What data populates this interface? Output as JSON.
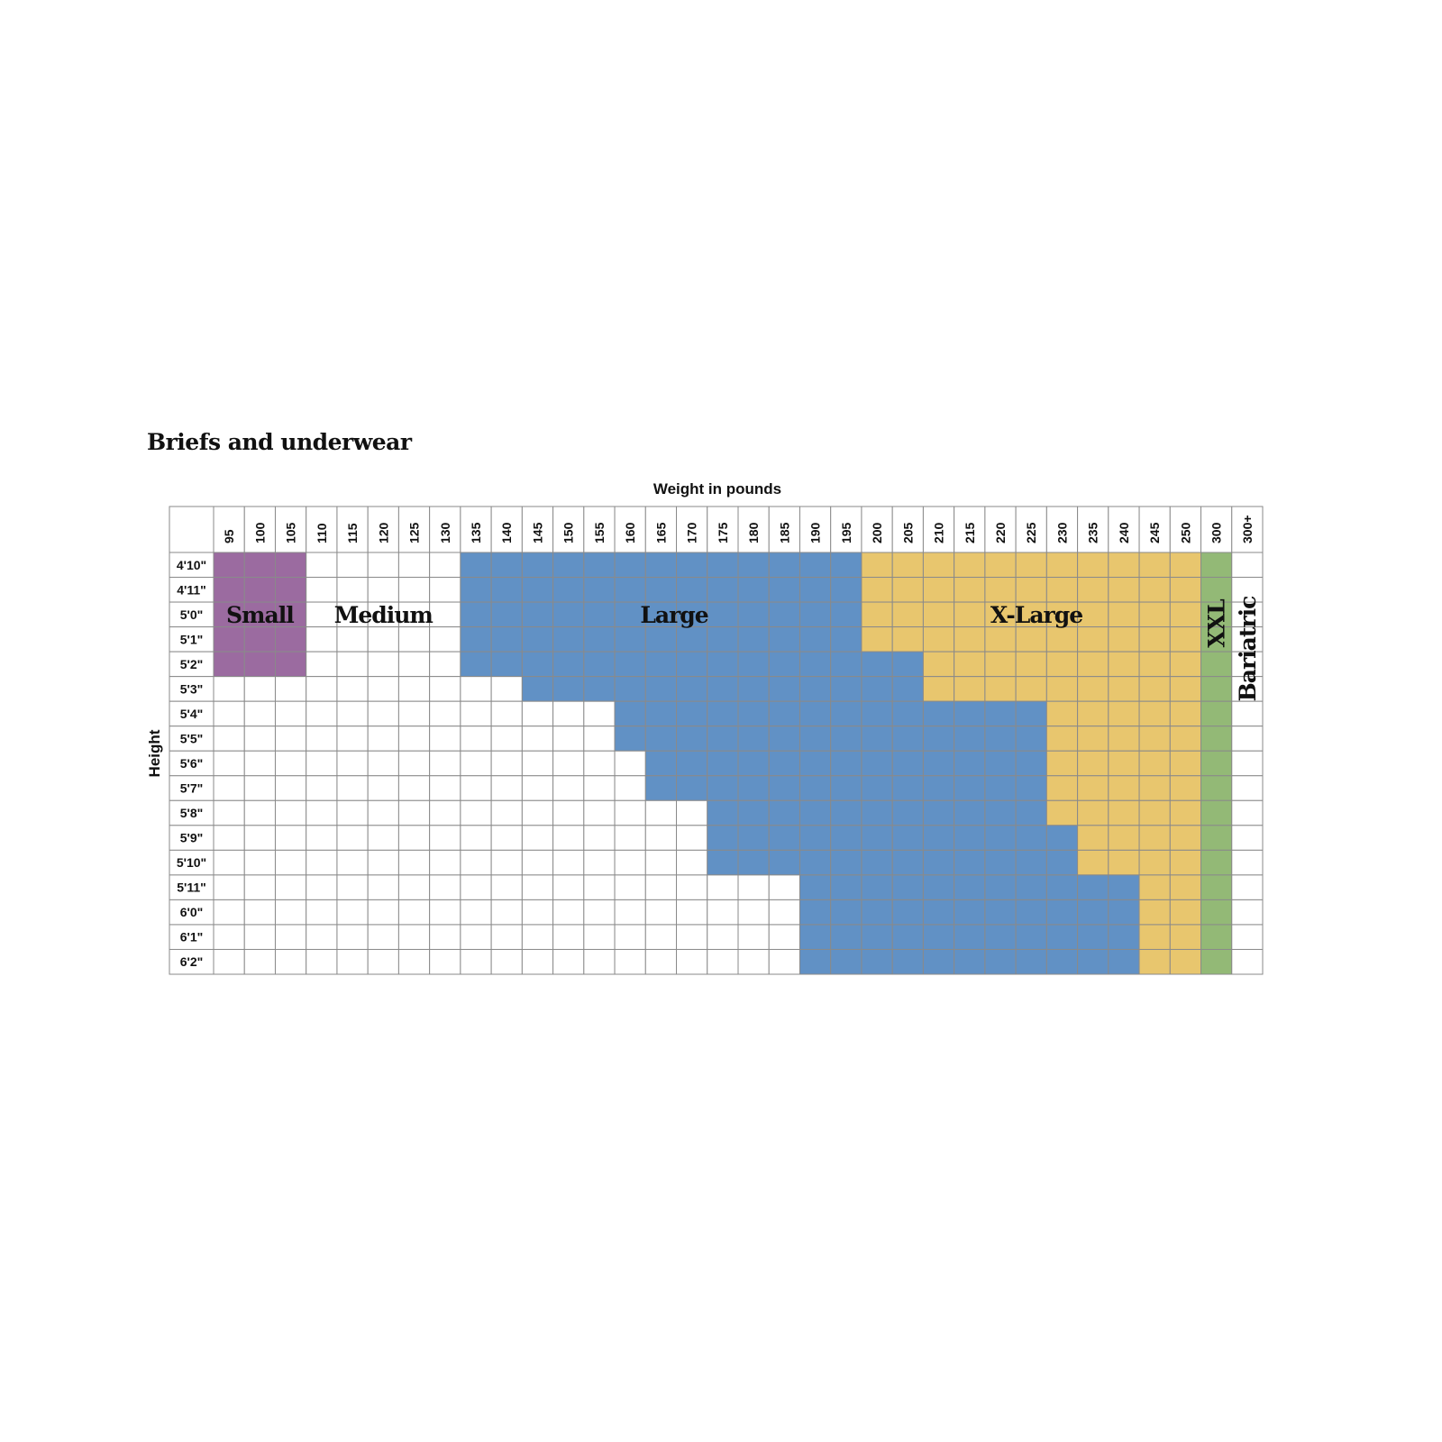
{
  "chart_data": {
    "type": "heatmap",
    "title": "Briefs and underwear",
    "xlabel": "Weight in pounds",
    "ylabel": "Height",
    "x_categories": [
      "95",
      "100",
      "105",
      "110",
      "115",
      "120",
      "125",
      "130",
      "135",
      "140",
      "145",
      "150",
      "155",
      "160",
      "165",
      "170",
      "175",
      "180",
      "185",
      "190",
      "195",
      "200",
      "205",
      "210",
      "215",
      "220",
      "225",
      "230",
      "235",
      "240",
      "245",
      "250",
      "300",
      "300+"
    ],
    "y_categories": [
      "4'10\"",
      "4'11\"",
      "5'0\"",
      "5'1\"",
      "5'2\"",
      "5'3\"",
      "5'4\"",
      "5'5\"",
      "5'6\"",
      "5'7\"",
      "5'8\"",
      "5'9\"",
      "5'10\"",
      "5'11\"",
      "6'0\"",
      "6'1\"",
      "6'2\""
    ],
    "sizes": [
      {
        "code": "S",
        "name": "Small",
        "color": "#9b6ba0"
      },
      {
        "code": "M",
        "name": "Medium",
        "color": "#ffffff"
      },
      {
        "code": "L",
        "name": "Large",
        "color": "#6191c5"
      },
      {
        "code": "X",
        "name": "X-Large",
        "color": "#e8c66e"
      },
      {
        "code": "2",
        "name": "XXL",
        "color": "#93b976"
      },
      {
        "code": "B",
        "name": "Bariatric",
        "color": "#ffffff"
      }
    ],
    "rows": [
      "SSSMMMMMLLLLLLLLLLLLLXXXXXXXXXXX2B",
      "SSSMMMMMLLLLLLLLLLLLLXXXXXXXXXXX2B",
      "SSSMMMMMLLLLLLLLLLLLLXXXXXXXXXXX2B",
      "SSSMMMMMLLLLLLLLLLLLLXXXXXXXXXXX2B",
      "SSSMMMMMLLLLLLLLLLLLLLLXXXXXXXXX2B",
      "MMMMMMMMMMLLLLLLLLLLLLLXXXXXXXXX2B",
      "MMMMMMMMMMMMMLLLLLLLLLLLLLLXXXXX2B",
      "MMMMMMMMMMMMMLLLLLLLLLLLLLLXXXXX2B",
      "MMMMMMMMMMMMMMLLLLLLLLLLLLLXXXXX2B",
      "MMMMMMMMMMMMMMLLLLLLLLLLLLLXXXXX2B",
      "MMMMMMMMMMMMMMMMLLLLLLLLLLLXXXXX2B",
      "MMMMMMMMMMMMMMMMLLLLLLLLLLLLXXXX2B",
      "MMMMMMMMMMMMMMMMLLLLLLLLLLLLXXXX2B",
      "MMMMMMMMMMMMMMMMMMMLLLLLLLLLLLXX2B",
      "MMMMMMMMMMMMMMMMMMMLLLLLLLLLLLXX2B",
      "MMMMMMMMMMMMMMMMMMMLLLLLLLLLLLXX2B",
      "MMMMMMMMMMMMMMMMMMMLLLLLLLLLLLXX2B"
    ],
    "grid": true,
    "grid_color": "#8a8a8a"
  }
}
